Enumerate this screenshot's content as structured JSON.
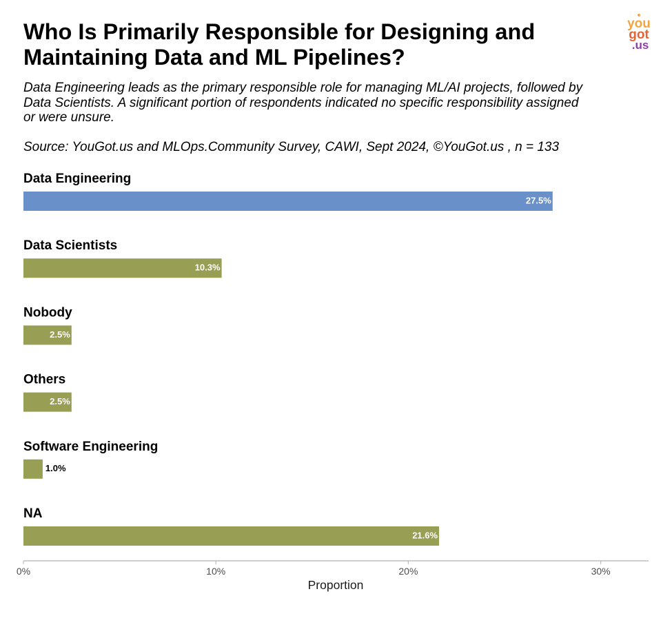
{
  "header": {
    "title": "Who Is Primarily Responsible for Designing and Maintaining Data and ML Pipelines?",
    "subtitle": "Data Engineering leads as the primary responsible role for managing ML/AI projects, followed by Data Scientists. A significant portion of respondents indicated no specific responsibility assigned or were unsure.",
    "source": "Source: YouGot.us and MLOps.Community Survey, CAWI, Sept 2024, ©YouGot.us , n = 133"
  },
  "logo": {
    "line1": "you",
    "line2": "got",
    "line3": ".us"
  },
  "chart_data": {
    "type": "bar",
    "orientation": "horizontal",
    "categories": [
      "Data Engineering",
      "Data Scientists",
      "Nobody",
      "Others",
      "Software Engineering",
      "NA"
    ],
    "values": [
      27.5,
      10.3,
      2.5,
      2.5,
      1.0,
      21.6
    ],
    "value_labels": [
      "27.5%",
      "10.3%",
      "2.5%",
      "2.5%",
      "1.0%",
      "21.6%"
    ],
    "bar_colors": [
      "#6990c9",
      "#999e55",
      "#999e55",
      "#999e55",
      "#999e55",
      "#999e55"
    ],
    "xlabel": "Proportion",
    "xlim": [
      0,
      32.5
    ],
    "xticks": [
      0,
      10,
      20,
      30
    ],
    "xtick_labels": [
      "0%",
      "10%",
      "20%",
      "30%"
    ],
    "grid": false
  }
}
